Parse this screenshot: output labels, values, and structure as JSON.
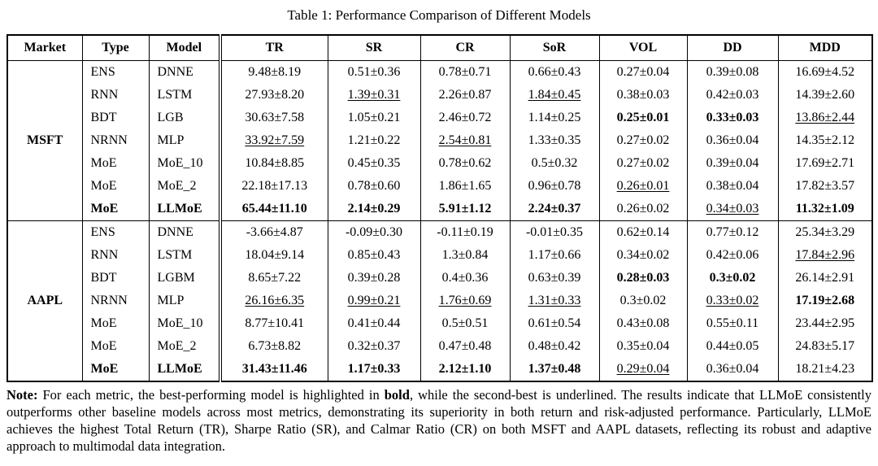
{
  "title": "Table 1: Performance Comparison of Different Models",
  "table": {
    "headers": [
      "Market",
      "Type",
      "Model",
      "TR",
      "SR",
      "CR",
      "SoR",
      "VOL",
      "DD",
      "MDD"
    ],
    "sections": [
      {
        "market": "MSFT",
        "rows": [
          {
            "type": "ENS",
            "model": "DNNE",
            "emph": false,
            "values": [
              [
                "9.48±8.19",
                ""
              ],
              [
                "0.51±0.36",
                ""
              ],
              [
                "0.78±0.71",
                ""
              ],
              [
                "0.66±0.43",
                ""
              ],
              [
                "0.27±0.04",
                ""
              ],
              [
                "0.39±0.08",
                ""
              ],
              [
                "16.69±4.52",
                ""
              ]
            ]
          },
          {
            "type": "RNN",
            "model": "LSTM",
            "emph": false,
            "values": [
              [
                "27.93±8.20",
                ""
              ],
              [
                "1.39±0.31",
                "u"
              ],
              [
                "2.26±0.87",
                ""
              ],
              [
                "1.84±0.45",
                "u"
              ],
              [
                "0.38±0.03",
                ""
              ],
              [
                "0.42±0.03",
                ""
              ],
              [
                "14.39±2.60",
                ""
              ]
            ]
          },
          {
            "type": "BDT",
            "model": "LGB",
            "emph": false,
            "values": [
              [
                "30.63±7.58",
                ""
              ],
              [
                "1.05±0.21",
                ""
              ],
              [
                "2.46±0.72",
                ""
              ],
              [
                "1.14±0.25",
                ""
              ],
              [
                "0.25±0.01",
                "b"
              ],
              [
                "0.33±0.03",
                "b"
              ],
              [
                "13.86±2.44",
                "u"
              ]
            ]
          },
          {
            "type": "NRNN",
            "model": "MLP",
            "emph": false,
            "values": [
              [
                "33.92±7.59",
                "u"
              ],
              [
                "1.21±0.22",
                ""
              ],
              [
                "2.54±0.81",
                "u"
              ],
              [
                "1.33±0.35",
                ""
              ],
              [
                "0.27±0.02",
                ""
              ],
              [
                "0.36±0.04",
                ""
              ],
              [
                "14.35±2.12",
                ""
              ]
            ]
          },
          {
            "type": "MoE",
            "model": "MoE_10",
            "emph": false,
            "values": [
              [
                "10.84±8.85",
                ""
              ],
              [
                "0.45±0.35",
                ""
              ],
              [
                "0.78±0.62",
                ""
              ],
              [
                "0.5±0.32",
                ""
              ],
              [
                "0.27±0.02",
                ""
              ],
              [
                "0.39±0.04",
                ""
              ],
              [
                "17.69±2.71",
                ""
              ]
            ]
          },
          {
            "type": "MoE",
            "model": "MoE_2",
            "emph": false,
            "values": [
              [
                "22.18±17.13",
                ""
              ],
              [
                "0.78±0.60",
                ""
              ],
              [
                "1.86±1.65",
                ""
              ],
              [
                "0.96±0.78",
                ""
              ],
              [
                "0.26±0.01",
                "u"
              ],
              [
                "0.38±0.04",
                ""
              ],
              [
                "17.82±3.57",
                ""
              ]
            ]
          },
          {
            "type": "MoE",
            "model": "LLMoE",
            "emph": true,
            "values": [
              [
                "65.44±11.10",
                "b"
              ],
              [
                "2.14±0.29",
                "b"
              ],
              [
                "5.91±1.12",
                "b"
              ],
              [
                "2.24±0.37",
                "b"
              ],
              [
                "0.26±0.02",
                ""
              ],
              [
                "0.34±0.03",
                "u"
              ],
              [
                "11.32±1.09",
                "b"
              ]
            ]
          }
        ]
      },
      {
        "market": "AAPL",
        "rows": [
          {
            "type": "ENS",
            "model": "DNNE",
            "emph": false,
            "values": [
              [
                "-3.66±4.87",
                ""
              ],
              [
                "-0.09±0.30",
                ""
              ],
              [
                "-0.11±0.19",
                ""
              ],
              [
                "-0.01±0.35",
                ""
              ],
              [
                "0.62±0.14",
                ""
              ],
              [
                "0.77±0.12",
                ""
              ],
              [
                "25.34±3.29",
                ""
              ]
            ]
          },
          {
            "type": "RNN",
            "model": "LSTM",
            "emph": false,
            "values": [
              [
                "18.04±9.14",
                ""
              ],
              [
                "0.85±0.43",
                ""
              ],
              [
                "1.3±0.84",
                ""
              ],
              [
                "1.17±0.66",
                ""
              ],
              [
                "0.34±0.02",
                ""
              ],
              [
                "0.42±0.06",
                ""
              ],
              [
                "17.84±2.96",
                "u"
              ]
            ]
          },
          {
            "type": "BDT",
            "model": "LGBM",
            "emph": false,
            "values": [
              [
                "8.65±7.22",
                ""
              ],
              [
                "0.39±0.28",
                ""
              ],
              [
                "0.4±0.36",
                ""
              ],
              [
                "0.63±0.39",
                ""
              ],
              [
                "0.28±0.03",
                "b"
              ],
              [
                "0.3±0.02",
                "b"
              ],
              [
                "26.14±2.91",
                ""
              ]
            ]
          },
          {
            "type": "NRNN",
            "model": "MLP",
            "emph": false,
            "values": [
              [
                "26.16±6.35",
                "u"
              ],
              [
                "0.99±0.21",
                "u"
              ],
              [
                "1.76±0.69",
                "u"
              ],
              [
                "1.31±0.33",
                "u"
              ],
              [
                "0.3±0.02",
                ""
              ],
              [
                "0.33±0.02",
                "u"
              ],
              [
                "17.19±2.68",
                "b"
              ]
            ]
          },
          {
            "type": "MoE",
            "model": "MoE_10",
            "emph": false,
            "values": [
              [
                "8.77±10.41",
                ""
              ],
              [
                "0.41±0.44",
                ""
              ],
              [
                "0.5±0.51",
                ""
              ],
              [
                "0.61±0.54",
                ""
              ],
              [
                "0.43±0.08",
                ""
              ],
              [
                "0.55±0.11",
                ""
              ],
              [
                "23.44±2.95",
                ""
              ]
            ]
          },
          {
            "type": "MoE",
            "model": "MoE_2",
            "emph": false,
            "values": [
              [
                "6.73±8.82",
                ""
              ],
              [
                "0.32±0.37",
                ""
              ],
              [
                "0.47±0.48",
                ""
              ],
              [
                "0.48±0.42",
                ""
              ],
              [
                "0.35±0.04",
                ""
              ],
              [
                "0.44±0.05",
                ""
              ],
              [
                "24.83±5.17",
                ""
              ]
            ]
          },
          {
            "type": "MoE",
            "model": "LLMoE",
            "emph": true,
            "values": [
              [
                "31.43±11.46",
                "b"
              ],
              [
                "1.17±0.33",
                "b"
              ],
              [
                "2.12±1.10",
                "b"
              ],
              [
                "1.37±0.48",
                "b"
              ],
              [
                "0.29±0.04",
                "u"
              ],
              [
                "0.36±0.04",
                ""
              ],
              [
                "18.21±4.23",
                ""
              ]
            ]
          }
        ]
      }
    ]
  },
  "note": {
    "segments": [
      {
        "text": "Note:",
        "bold": true
      },
      {
        "text": " For each metric, the best-performing model is highlighted in ",
        "bold": false
      },
      {
        "text": "bold",
        "bold": true
      },
      {
        "text": ", while the second-best is underlined. The results indicate that LLMoE consistently outperforms other baseline models across most metrics, demonstrating its superiority in both return and risk-adjusted performance. Particularly, LLMoE achieves the highest Total Return (TR), Sharpe Ratio (SR), and Calmar Ratio (CR) on both MSFT and AAPL datasets, reflecting its robust and adaptive approach to multimodal data integration.",
        "bold": false
      }
    ]
  }
}
